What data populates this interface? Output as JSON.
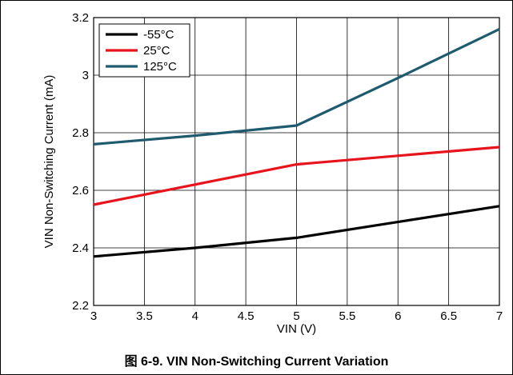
{
  "caption": "图 6-9. VIN Non-Switching Current Variation",
  "chart_data": {
    "type": "line",
    "title": "",
    "xlabel": "VIN (V)",
    "ylabel": "VIN Non-Switching Current (mA)",
    "xlim": [
      3,
      7
    ],
    "ylim": [
      2.2,
      3.2
    ],
    "x_ticks": [
      "3",
      "3.5",
      "4",
      "4.5",
      "5",
      "5.5",
      "6",
      "6.5",
      "7"
    ],
    "y_ticks": [
      "2.2",
      "2.4",
      "2.6",
      "2.8",
      "3",
      "3.2"
    ],
    "grid": true,
    "legend_position": "top-left",
    "series": [
      {
        "name": "-55°C",
        "color": "#000000",
        "x": [
          3,
          4,
          5,
          6,
          7
        ],
        "y": [
          2.37,
          2.4,
          2.435,
          2.49,
          2.545
        ]
      },
      {
        "name": "25°C",
        "color": "#e8141c",
        "x": [
          3,
          4,
          5,
          6,
          7
        ],
        "y": [
          2.55,
          2.62,
          2.69,
          2.72,
          2.75
        ]
      },
      {
        "name": "125°C",
        "color": "#1f5b6e",
        "x": [
          3,
          4,
          5,
          6,
          7
        ],
        "y": [
          2.76,
          2.79,
          2.825,
          2.99,
          3.16
        ]
      }
    ]
  }
}
